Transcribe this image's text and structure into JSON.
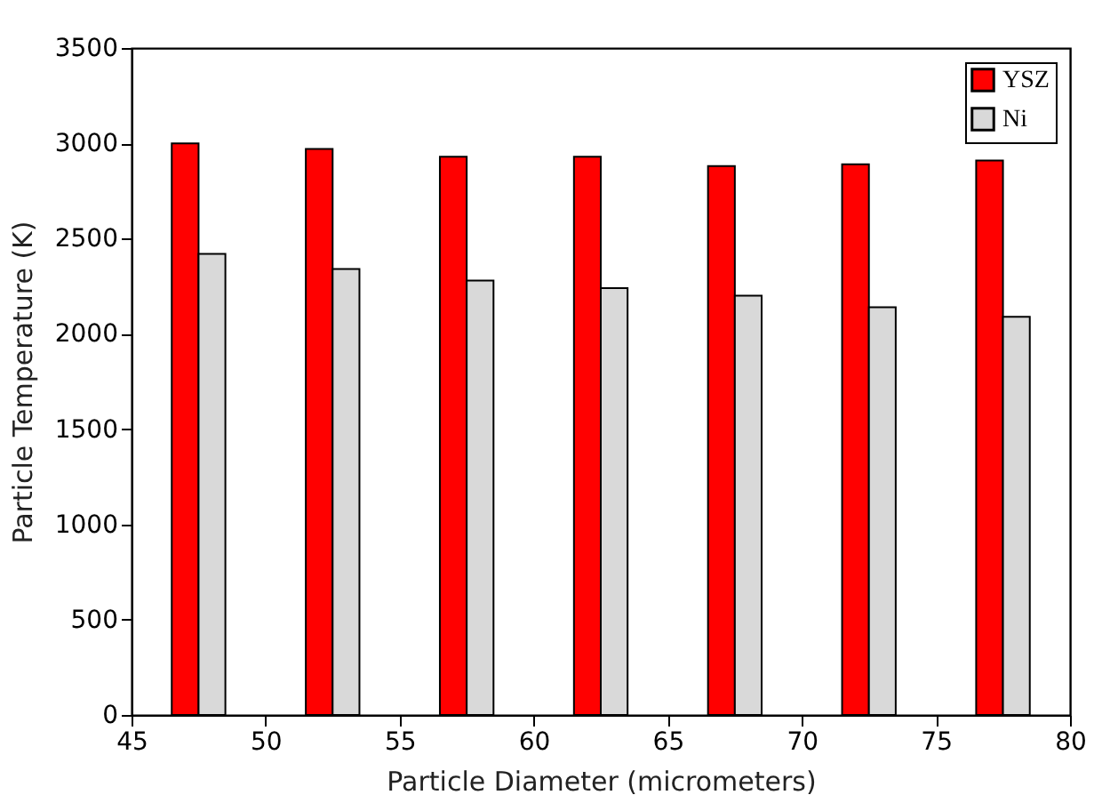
{
  "chart_data": {
    "type": "bar",
    "xlabel": "Particle Diameter (micrometers)",
    "ylabel": "Particle Temperature (K)",
    "series": [
      {
        "name": "YSZ",
        "color": "#ff0000",
        "x": [
          47,
          52,
          57,
          62,
          67,
          72,
          77
        ],
        "values": [
          3000,
          2970,
          2930,
          2930,
          2880,
          2890,
          2910
        ]
      },
      {
        "name": "Ni",
        "color": "#d9d9d9",
        "x": [
          48,
          53,
          58,
          63,
          68,
          73,
          78
        ],
        "values": [
          2420,
          2340,
          2280,
          2240,
          2200,
          2140,
          2090
        ]
      }
    ],
    "xlim": [
      45,
      80
    ],
    "xticks": [
      45,
      50,
      55,
      60,
      65,
      70,
      75,
      80
    ],
    "ylim": [
      0,
      3500
    ],
    "yticks": [
      0,
      500,
      1000,
      1500,
      2000,
      2500,
      3000,
      3500
    ],
    "grid": false,
    "legend": "top right"
  }
}
